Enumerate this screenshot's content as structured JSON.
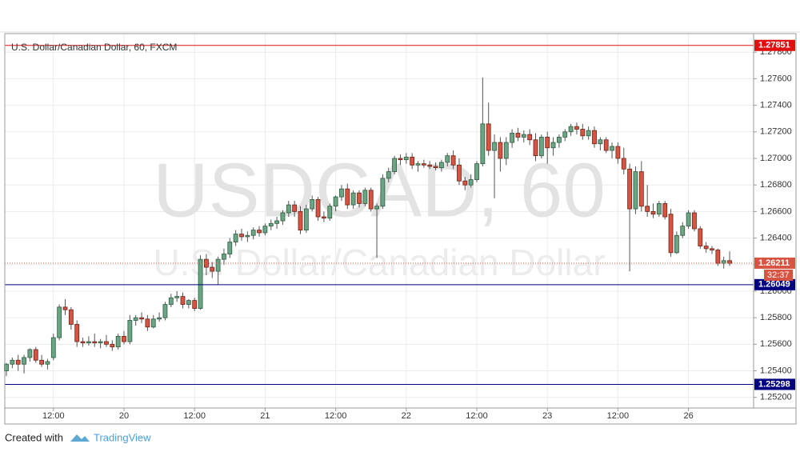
{
  "chart_data": {
    "type": "candlestick",
    "title": "U.S. Dollar/Canadian Dollar, 60, FXCM",
    "watermark": [
      "USDCAD, 60",
      "U.S. Dollar/Canadian Dollar"
    ],
    "up_color": "#6ba583",
    "down_color": "#d75442",
    "ylim": [
      1.2512,
      1.2794
    ],
    "yticks": [
      {
        "value": 1.252,
        "label": "1.25200"
      },
      {
        "value": 1.254,
        "label": "1.25400"
      },
      {
        "value": 1.256,
        "label": "1.25600"
      },
      {
        "value": 1.258,
        "label": "1.25800"
      },
      {
        "value": 1.26,
        "label": "1.26000"
      },
      {
        "value": 1.262,
        "label": "1.26200"
      },
      {
        "value": 1.264,
        "label": "1.26400"
      },
      {
        "value": 1.266,
        "label": "1.26600"
      },
      {
        "value": 1.268,
        "label": "1.26800"
      },
      {
        "value": 1.27,
        "label": "1.27000"
      },
      {
        "value": 1.272,
        "label": "1.27200"
      },
      {
        "value": 1.274,
        "label": "1.27400"
      },
      {
        "value": 1.276,
        "label": "1.27600"
      },
      {
        "value": 1.278,
        "label": "1.27800"
      }
    ],
    "xticks": [
      {
        "value": 8,
        "label": "12:00"
      },
      {
        "value": 20,
        "label": "20"
      },
      {
        "value": 32,
        "label": "12:00"
      },
      {
        "value": 44,
        "label": "21"
      },
      {
        "value": 56,
        "label": "12:00"
      },
      {
        "value": 68,
        "label": "22"
      },
      {
        "value": 80,
        "label": "12:00"
      },
      {
        "value": 92,
        "label": "23"
      },
      {
        "value": 104,
        "label": "12:00"
      },
      {
        "value": 116,
        "label": "26"
      }
    ],
    "grid": true,
    "price_lines": [
      {
        "value": 1.27851,
        "label": "1.27851",
        "color": "#e01010"
      },
      {
        "value": 1.26049,
        "label": "1.26049",
        "color": "#000080"
      },
      {
        "value": 1.25298,
        "label": "1.25298",
        "color": "#000080"
      }
    ],
    "last_price": {
      "value": 1.26211,
      "label": "1.26211",
      "countdown": "32:37",
      "color": "#d75442"
    },
    "ohlc": [
      [
        1.254,
        1.2546,
        1.2536,
        1.2545
      ],
      [
        1.2545,
        1.255,
        1.2542,
        1.2548
      ],
      [
        1.2548,
        1.2552,
        1.254,
        1.2545
      ],
      [
        1.2545,
        1.2552,
        1.2538,
        1.255
      ],
      [
        1.255,
        1.2557,
        1.2547,
        1.2556
      ],
      [
        1.2556,
        1.2558,
        1.2546,
        1.2548
      ],
      [
        1.2548,
        1.2552,
        1.2543,
        1.2545
      ],
      [
        1.2545,
        1.2549,
        1.2541,
        1.2547
      ],
      [
        1.255,
        1.2568,
        1.2548,
        1.2565
      ],
      [
        1.2565,
        1.259,
        1.2563,
        1.2588
      ],
      [
        1.2588,
        1.2594,
        1.2582,
        1.2586
      ],
      [
        1.2586,
        1.2588,
        1.2571,
        1.2575
      ],
      [
        1.2575,
        1.2578,
        1.2558,
        1.2562
      ],
      [
        1.2562,
        1.2565,
        1.2558,
        1.2561
      ],
      [
        1.2561,
        1.2566,
        1.2559,
        1.2562
      ],
      [
        1.2562,
        1.2568,
        1.2558,
        1.2561
      ],
      [
        1.2561,
        1.2564,
        1.2557,
        1.2562
      ],
      [
        1.2562,
        1.2567,
        1.2558,
        1.256
      ],
      [
        1.256,
        1.2563,
        1.2555,
        1.2558
      ],
      [
        1.2558,
        1.2568,
        1.2556,
        1.2566
      ],
      [
        1.2566,
        1.257,
        1.256,
        1.2562
      ],
      [
        1.2562,
        1.2582,
        1.256,
        1.2578
      ],
      [
        1.2578,
        1.2582,
        1.2574,
        1.258
      ],
      [
        1.258,
        1.2584,
        1.2576,
        1.2579
      ],
      [
        1.2579,
        1.2582,
        1.257,
        1.2573
      ],
      [
        1.2573,
        1.2582,
        1.2572,
        1.2579
      ],
      [
        1.2579,
        1.2584,
        1.2577,
        1.258
      ],
      [
        1.258,
        1.2592,
        1.2578,
        1.259
      ],
      [
        1.259,
        1.2598,
        1.2588,
        1.2595
      ],
      [
        1.2595,
        1.26,
        1.2592,
        1.2596
      ],
      [
        1.2596,
        1.2599,
        1.2587,
        1.259
      ],
      [
        1.259,
        1.2594,
        1.2587,
        1.2593
      ],
      [
        1.2593,
        1.2595,
        1.2585,
        1.2587
      ],
      [
        1.2587,
        1.2627,
        1.2586,
        1.2624
      ],
      [
        1.2624,
        1.2628,
        1.2612,
        1.2618
      ],
      [
        1.2618,
        1.2622,
        1.261,
        1.2615
      ],
      [
        1.2615,
        1.2626,
        1.2605,
        1.2624
      ],
      [
        1.2624,
        1.2632,
        1.262,
        1.2628
      ],
      [
        1.2628,
        1.264,
        1.2625,
        1.2637
      ],
      [
        1.2637,
        1.2646,
        1.2634,
        1.2643
      ],
      [
        1.2643,
        1.2647,
        1.2638,
        1.2641
      ],
      [
        1.2641,
        1.2645,
        1.2637,
        1.2642
      ],
      [
        1.2642,
        1.2648,
        1.2639,
        1.2646
      ],
      [
        1.2646,
        1.2649,
        1.2641,
        1.2644
      ],
      [
        1.2644,
        1.2651,
        1.2642,
        1.2649
      ],
      [
        1.2649,
        1.2654,
        1.2646,
        1.2651
      ],
      [
        1.2651,
        1.2656,
        1.2647,
        1.2653
      ],
      [
        1.2653,
        1.2661,
        1.265,
        1.2659
      ],
      [
        1.2659,
        1.2668,
        1.2656,
        1.2665
      ],
      [
        1.2665,
        1.2668,
        1.2656,
        1.266
      ],
      [
        1.266,
        1.2664,
        1.2643,
        1.2646
      ],
      [
        1.2646,
        1.2665,
        1.2644,
        1.2662
      ],
      [
        1.2662,
        1.2672,
        1.266,
        1.2669
      ],
      [
        1.2669,
        1.2671,
        1.2653,
        1.2656
      ],
      [
        1.2656,
        1.266,
        1.2652,
        1.2655
      ],
      [
        1.2655,
        1.2666,
        1.2653,
        1.2664
      ],
      [
        1.2664,
        1.2672,
        1.266,
        1.2671
      ],
      [
        1.2671,
        1.268,
        1.2668,
        1.2677
      ],
      [
        1.2677,
        1.2681,
        1.2662,
        1.2665
      ],
      [
        1.2665,
        1.2676,
        1.2662,
        1.2674
      ],
      [
        1.2674,
        1.2676,
        1.2663,
        1.2666
      ],
      [
        1.2666,
        1.2678,
        1.2664,
        1.2676
      ],
      [
        1.2676,
        1.2678,
        1.266,
        1.2662
      ],
      [
        1.2662,
        1.2666,
        1.2625,
        1.2664
      ],
      [
        1.2664,
        1.2688,
        1.2662,
        1.2685
      ],
      [
        1.2685,
        1.2693,
        1.2682,
        1.269
      ],
      [
        1.269,
        1.2702,
        1.2688,
        1.27
      ],
      [
        1.27,
        1.2703,
        1.2695,
        1.2699
      ],
      [
        1.2699,
        1.2704,
        1.2696,
        1.2701
      ],
      [
        1.2701,
        1.2704,
        1.2692,
        1.2695
      ],
      [
        1.2695,
        1.2698,
        1.269,
        1.2696
      ],
      [
        1.2696,
        1.2699,
        1.2693,
        1.2695
      ],
      [
        1.2695,
        1.2698,
        1.2692,
        1.2694
      ],
      [
        1.2694,
        1.2697,
        1.2691,
        1.2693
      ],
      [
        1.2693,
        1.2699,
        1.269,
        1.2697
      ],
      [
        1.2697,
        1.2704,
        1.2694,
        1.2702
      ],
      [
        1.2702,
        1.2706,
        1.2692,
        1.2695
      ],
      [
        1.2695,
        1.27,
        1.268,
        1.2683
      ],
      [
        1.2683,
        1.2686,
        1.2676,
        1.268
      ],
      [
        1.268,
        1.2688,
        1.2678,
        1.2684
      ],
      [
        1.2684,
        1.2698,
        1.2682,
        1.2696
      ],
      [
        1.2696,
        1.2761,
        1.2694,
        1.2726
      ],
      [
        1.2726,
        1.2742,
        1.2702,
        1.2706
      ],
      [
        1.2706,
        1.2718,
        1.267,
        1.2712
      ],
      [
        1.2712,
        1.2716,
        1.269,
        1.27
      ],
      [
        1.27,
        1.2716,
        1.2695,
        1.2712
      ],
      [
        1.2712,
        1.2722,
        1.2708,
        1.2719
      ],
      [
        1.2719,
        1.2723,
        1.2713,
        1.2716
      ],
      [
        1.2716,
        1.2721,
        1.2712,
        1.2718
      ],
      [
        1.2718,
        1.2722,
        1.271,
        1.2714
      ],
      [
        1.2714,
        1.2719,
        1.2698,
        1.2702
      ],
      [
        1.2702,
        1.2718,
        1.27,
        1.2716
      ],
      [
        1.2716,
        1.272,
        1.2696,
        1.2708
      ],
      [
        1.2708,
        1.2716,
        1.2702,
        1.2712
      ],
      [
        1.2712,
        1.2718,
        1.2708,
        1.2716
      ],
      [
        1.2716,
        1.2722,
        1.2713,
        1.272
      ],
      [
        1.272,
        1.2726,
        1.2717,
        1.2724
      ],
      [
        1.2724,
        1.2727,
        1.2718,
        1.2722
      ],
      [
        1.2722,
        1.2726,
        1.2714,
        1.2717
      ],
      [
        1.2717,
        1.2724,
        1.2714,
        1.2721
      ],
      [
        1.2721,
        1.2724,
        1.2708,
        1.2711
      ],
      [
        1.2711,
        1.2716,
        1.2706,
        1.2714
      ],
      [
        1.2714,
        1.2716,
        1.2704,
        1.2706
      ],
      [
        1.2706,
        1.2712,
        1.27,
        1.2709
      ],
      [
        1.2709,
        1.2712,
        1.2696,
        1.27
      ],
      [
        1.27,
        1.2708,
        1.2688,
        1.2692
      ],
      [
        1.2692,
        1.2696,
        1.2615,
        1.2662
      ],
      [
        1.2662,
        1.2694,
        1.2658,
        1.269
      ],
      [
        1.269,
        1.2698,
        1.266,
        1.2664
      ],
      [
        1.2664,
        1.268,
        1.2656,
        1.266
      ],
      [
        1.266,
        1.2666,
        1.2655,
        1.2658
      ],
      [
        1.2658,
        1.2668,
        1.2656,
        1.2666
      ],
      [
        1.2666,
        1.2668,
        1.2654,
        1.2656
      ],
      [
        1.2658,
        1.2662,
        1.2626,
        1.2629
      ],
      [
        1.2629,
        1.2645,
        1.2628,
        1.2642
      ],
      [
        1.2642,
        1.2652,
        1.264,
        1.2649
      ],
      [
        1.2649,
        1.2661,
        1.2647,
        1.2659
      ],
      [
        1.2659,
        1.2661,
        1.2645,
        1.2647
      ],
      [
        1.2647,
        1.2649,
        1.2632,
        1.2634
      ],
      [
        1.2634,
        1.2637,
        1.2629,
        1.2632
      ],
      [
        1.2632,
        1.2634,
        1.2628,
        1.2631
      ],
      [
        1.2631,
        1.2632,
        1.2619,
        1.2621
      ],
      [
        1.2621,
        1.2626,
        1.2617,
        1.2623
      ],
      [
        1.2623,
        1.263,
        1.2619,
        1.2621
      ]
    ]
  },
  "footer": {
    "created_with": "Created with",
    "brand": "TradingView"
  }
}
